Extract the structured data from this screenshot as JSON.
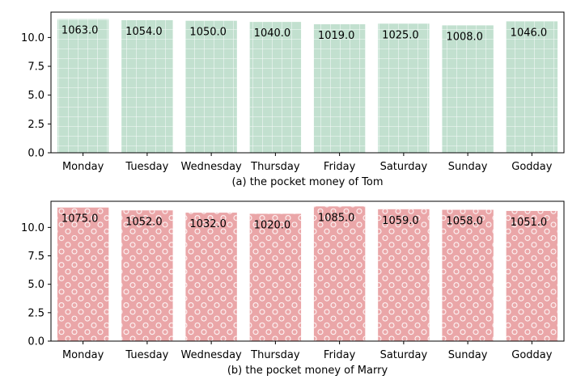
{
  "chart_data": [
    {
      "type": "bar",
      "caption": "(a) the pocket money of Tom",
      "categories": [
        "Monday",
        "Tuesday",
        "Wednesday",
        "Thursday",
        "Friday",
        "Saturday",
        "Sunday",
        "Godday"
      ],
      "values": [
        11.6,
        11.5,
        11.45,
        11.35,
        11.15,
        11.2,
        11.05,
        11.4
      ],
      "bar_labels": [
        "1063.0",
        "1054.0",
        "1050.0",
        "1040.0",
        "1019.0",
        "1025.0",
        "1008.0",
        "1046.0"
      ],
      "yticks": [
        "0.0",
        "2.5",
        "5.0",
        "7.5",
        "10.0"
      ],
      "ylim": [
        0,
        12.2
      ],
      "grid": false,
      "bar_color": "#c2e0cf",
      "hatch": "grid",
      "hatch_color": "#ffffff"
    },
    {
      "type": "bar",
      "caption": "(b) the pocket money of Marry",
      "categories": [
        "Monday",
        "Tuesday",
        "Wednesday",
        "Thursday",
        "Friday",
        "Saturday",
        "Sunday",
        "Godday"
      ],
      "values": [
        11.75,
        11.5,
        11.3,
        11.2,
        11.85,
        11.6,
        11.55,
        11.45
      ],
      "bar_labels": [
        "1075.0",
        "1052.0",
        "1032.0",
        "1020.0",
        "1085.0",
        "1059.0",
        "1058.0",
        "1051.0"
      ],
      "yticks": [
        "0.0",
        "2.5",
        "5.0",
        "7.5",
        "10.0"
      ],
      "ylim": [
        0,
        12.3
      ],
      "grid": false,
      "bar_color": "#eaa6a8",
      "hatch": "circles",
      "hatch_color": "#ffffff"
    }
  ]
}
